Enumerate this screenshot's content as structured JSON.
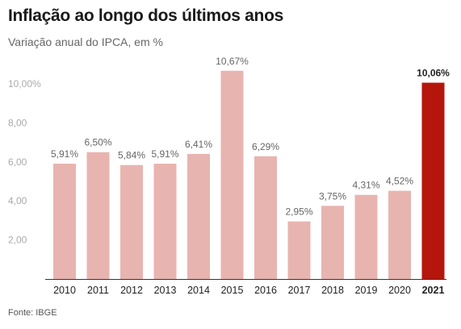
{
  "title": "Inflação ao longo dos últimos anos",
  "subtitle": "Variação anual do IPCA, em %",
  "source": "Fonte: IBGE",
  "colors": {
    "bar": "#e8b4b0",
    "highlight": "#b5160c",
    "axis": "#333333"
  },
  "chart_data": {
    "type": "bar",
    "title": "Inflação ao longo dos últimos anos",
    "subtitle": "Variação anual do IPCA, em %",
    "xlabel": "",
    "ylabel": "",
    "ylim": [
      0,
      11
    ],
    "yticks": [
      2,
      4,
      6,
      8,
      10
    ],
    "ytick_labels": [
      "2,00",
      "4,00",
      "6,00",
      "8,00",
      "10,00%"
    ],
    "grid": false,
    "categories": [
      "2010",
      "2011",
      "2012",
      "2013",
      "2014",
      "2015",
      "2016",
      "2017",
      "2018",
      "2019",
      "2020",
      "2021"
    ],
    "values": [
      5.91,
      6.5,
      5.84,
      5.91,
      6.41,
      10.67,
      6.29,
      2.95,
      3.75,
      4.31,
      4.52,
      10.06
    ],
    "value_labels": [
      "5,91%",
      "6,50%",
      "5,84%",
      "5,91%",
      "6,41%",
      "10,67%",
      "6,29%",
      "2,95%",
      "3,75%",
      "4,31%",
      "4,52%",
      "10,06%"
    ],
    "highlight": "2021"
  }
}
